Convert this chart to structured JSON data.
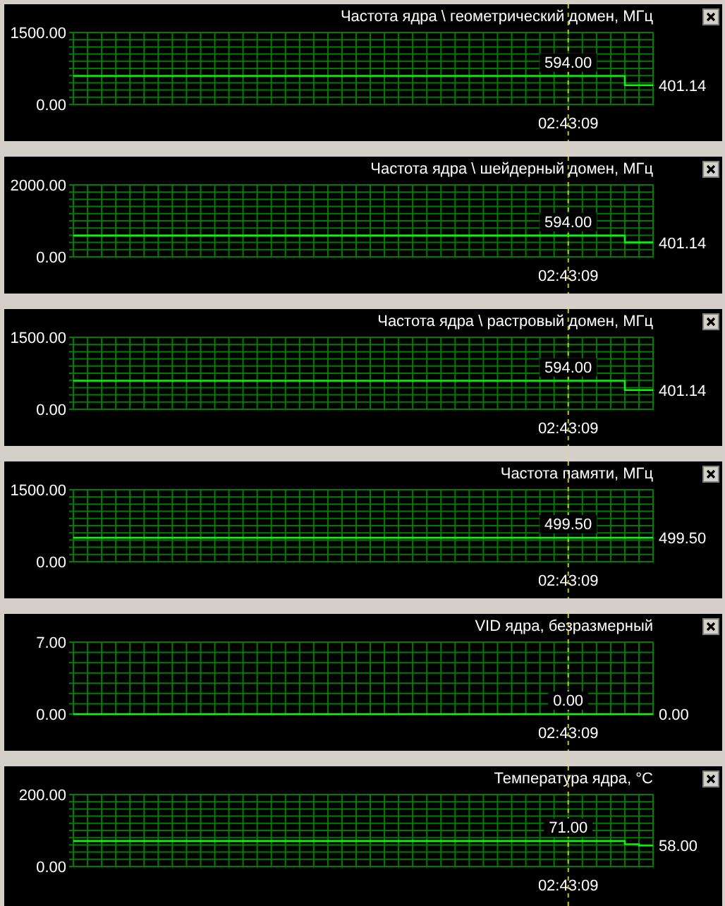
{
  "chart_data": [
    {
      "type": "step",
      "title": "Частота ядра \\ геометрический домен, МГц",
      "categories": [
        null,
        null,
        null,
        null,
        null,
        null,
        null,
        null,
        null,
        null,
        null,
        null,
        null,
        null,
        null,
        null,
        null,
        null,
        null,
        null,
        null,
        null,
        null,
        null,
        null,
        null,
        null,
        null,
        null,
        null,
        null,
        null,
        null,
        null,
        null,
        null,
        null,
        null,
        null,
        null,
        null,
        null
      ],
      "color": "#00ff00",
      "values": [
        594,
        594,
        594,
        594,
        594,
        594,
        594,
        594,
        594,
        594,
        594,
        594,
        594,
        594,
        594,
        594,
        594,
        594,
        594,
        594,
        594,
        594,
        594,
        594,
        594,
        594,
        594,
        594,
        594,
        594,
        594,
        594,
        594,
        594,
        594,
        594,
        594,
        594,
        594,
        401.14,
        401.14,
        401.14
      ],
      "value_labels": [
        null,
        null,
        null,
        null,
        null,
        null,
        null,
        null,
        null,
        null,
        null,
        null,
        null,
        null,
        null,
        null,
        null,
        null,
        null,
        null,
        null,
        null,
        null,
        null,
        null,
        null,
        null,
        null,
        null,
        null,
        null,
        null,
        null,
        null,
        null,
        "594.00",
        null,
        null,
        null,
        null,
        null,
        "401.14"
      ],
      "ylim": [
        0,
        1500
      ],
      "yticks": [
        {
          "value": 0,
          "label": "0.00"
        },
        {
          "value": 150,
          "label": null
        },
        {
          "value": 300,
          "label": null
        },
        {
          "value": 450,
          "label": null
        },
        {
          "value": 600,
          "label": null
        },
        {
          "value": 750,
          "label": null
        },
        {
          "value": 900,
          "label": null
        },
        {
          "value": 1050,
          "label": null
        },
        {
          "value": 1200,
          "label": null
        },
        {
          "value": 1350,
          "label": null
        },
        {
          "value": 1500,
          "label": "1500.00"
        }
      ],
      "grid": true,
      "annotations": [
        "02:43:09"
      ]
    },
    {
      "type": "step",
      "title": "Частота ядра \\ шейдерный домен, МГц",
      "categories": [
        null,
        null,
        null,
        null,
        null,
        null,
        null,
        null,
        null,
        null,
        null,
        null,
        null,
        null,
        null,
        null,
        null,
        null,
        null,
        null,
        null,
        null,
        null,
        null,
        null,
        null,
        null,
        null,
        null,
        null,
        null,
        null,
        null,
        null,
        null,
        null,
        null,
        null,
        null,
        null,
        null,
        null
      ],
      "color": "#00ff00",
      "values": [
        594,
        594,
        594,
        594,
        594,
        594,
        594,
        594,
        594,
        594,
        594,
        594,
        594,
        594,
        594,
        594,
        594,
        594,
        594,
        594,
        594,
        594,
        594,
        594,
        594,
        594,
        594,
        594,
        594,
        594,
        594,
        594,
        594,
        594,
        594,
        594,
        594,
        594,
        594,
        401.14,
        401.14,
        401.14
      ],
      "value_labels": [
        null,
        null,
        null,
        null,
        null,
        null,
        null,
        null,
        null,
        null,
        null,
        null,
        null,
        null,
        null,
        null,
        null,
        null,
        null,
        null,
        null,
        null,
        null,
        null,
        null,
        null,
        null,
        null,
        null,
        null,
        null,
        null,
        null,
        null,
        null,
        "594.00",
        null,
        null,
        null,
        null,
        null,
        "401.14"
      ],
      "ylim": [
        0,
        2000
      ],
      "yticks": [
        {
          "value": 0,
          "label": "0.00"
        },
        {
          "value": 200,
          "label": null
        },
        {
          "value": 400,
          "label": null
        },
        {
          "value": 600,
          "label": null
        },
        {
          "value": 800,
          "label": null
        },
        {
          "value": 1000,
          "label": null
        },
        {
          "value": 1200,
          "label": null
        },
        {
          "value": 1400,
          "label": null
        },
        {
          "value": 1600,
          "label": null
        },
        {
          "value": 1800,
          "label": null
        },
        {
          "value": 2000,
          "label": "2000.00"
        }
      ],
      "grid": true,
      "annotations": [
        "02:43:09"
      ]
    },
    {
      "type": "step",
      "title": "Частота ядра \\ растровый домен, МГц",
      "categories": [
        null,
        null,
        null,
        null,
        null,
        null,
        null,
        null,
        null,
        null,
        null,
        null,
        null,
        null,
        null,
        null,
        null,
        null,
        null,
        null,
        null,
        null,
        null,
        null,
        null,
        null,
        null,
        null,
        null,
        null,
        null,
        null,
        null,
        null,
        null,
        null,
        null,
        null,
        null,
        null,
        null,
        null
      ],
      "color": "#00ff00",
      "values": [
        594,
        594,
        594,
        594,
        594,
        594,
        594,
        594,
        594,
        594,
        594,
        594,
        594,
        594,
        594,
        594,
        594,
        594,
        594,
        594,
        594,
        594,
        594,
        594,
        594,
        594,
        594,
        594,
        594,
        594,
        594,
        594,
        594,
        594,
        594,
        594,
        594,
        594,
        594,
        401.14,
        401.14,
        401.14
      ],
      "value_labels": [
        null,
        null,
        null,
        null,
        null,
        null,
        null,
        null,
        null,
        null,
        null,
        null,
        null,
        null,
        null,
        null,
        null,
        null,
        null,
        null,
        null,
        null,
        null,
        null,
        null,
        null,
        null,
        null,
        null,
        null,
        null,
        null,
        null,
        null,
        null,
        "594.00",
        null,
        null,
        null,
        null,
        null,
        "401.14"
      ],
      "ylim": [
        0,
        1500
      ],
      "yticks": [
        {
          "value": 0,
          "label": "0.00"
        },
        {
          "value": 150,
          "label": null
        },
        {
          "value": 300,
          "label": null
        },
        {
          "value": 450,
          "label": null
        },
        {
          "value": 600,
          "label": null
        },
        {
          "value": 750,
          "label": null
        },
        {
          "value": 900,
          "label": null
        },
        {
          "value": 1050,
          "label": null
        },
        {
          "value": 1200,
          "label": null
        },
        {
          "value": 1350,
          "label": null
        },
        {
          "value": 1500,
          "label": "1500.00"
        }
      ],
      "grid": true,
      "annotations": [
        "02:43:09"
      ]
    },
    {
      "type": "step",
      "title": "Частота памяти, МГц",
      "categories": [
        null,
        null,
        null,
        null,
        null,
        null,
        null,
        null,
        null,
        null,
        null,
        null,
        null,
        null,
        null,
        null,
        null,
        null,
        null,
        null,
        null,
        null,
        null,
        null,
        null,
        null,
        null,
        null,
        null,
        null,
        null,
        null,
        null,
        null,
        null,
        null,
        null,
        null,
        null,
        null,
        null,
        null
      ],
      "color": "#00ff00",
      "values": [
        499.5,
        499.5,
        499.5,
        499.5,
        499.5,
        499.5,
        499.5,
        499.5,
        499.5,
        499.5,
        499.5,
        499.5,
        499.5,
        499.5,
        499.5,
        499.5,
        499.5,
        499.5,
        499.5,
        499.5,
        499.5,
        499.5,
        499.5,
        499.5,
        499.5,
        499.5,
        499.5,
        499.5,
        499.5,
        499.5,
        499.5,
        499.5,
        499.5,
        499.5,
        499.5,
        499.5,
        499.5,
        499.5,
        499.5,
        499.5,
        499.5,
        499.5
      ],
      "value_labels": [
        null,
        null,
        null,
        null,
        null,
        null,
        null,
        null,
        null,
        null,
        null,
        null,
        null,
        null,
        null,
        null,
        null,
        null,
        null,
        null,
        null,
        null,
        null,
        null,
        null,
        null,
        null,
        null,
        null,
        null,
        null,
        null,
        null,
        null,
        null,
        "499.50",
        null,
        null,
        null,
        null,
        null,
        "499.50"
      ],
      "ylim": [
        0,
        1500
      ],
      "yticks": [
        {
          "value": 0,
          "label": "0.00"
        },
        {
          "value": 150,
          "label": null
        },
        {
          "value": 300,
          "label": null
        },
        {
          "value": 450,
          "label": null
        },
        {
          "value": 600,
          "label": null
        },
        {
          "value": 750,
          "label": null
        },
        {
          "value": 900,
          "label": null
        },
        {
          "value": 1050,
          "label": null
        },
        {
          "value": 1200,
          "label": null
        },
        {
          "value": 1350,
          "label": null
        },
        {
          "value": 1500,
          "label": "1500.00"
        }
      ],
      "grid": true,
      "annotations": [
        "02:43:09"
      ]
    },
    {
      "type": "step",
      "title": "VID ядра, безразмерный",
      "categories": [
        null,
        null,
        null,
        null,
        null,
        null,
        null,
        null,
        null,
        null,
        null,
        null,
        null,
        null,
        null,
        null,
        null,
        null,
        null,
        null,
        null,
        null,
        null,
        null,
        null,
        null,
        null,
        null,
        null,
        null,
        null,
        null,
        null,
        null,
        null,
        null,
        null,
        null,
        null,
        null,
        null,
        null
      ],
      "color": "#00ff00",
      "values": [
        0,
        0,
        0,
        0,
        0,
        0,
        0,
        0,
        0,
        0,
        0,
        0,
        0,
        0,
        0,
        0,
        0,
        0,
        0,
        0,
        0,
        0,
        0,
        0,
        0,
        0,
        0,
        0,
        0,
        0,
        0,
        0,
        0,
        0,
        0,
        0,
        0,
        0,
        0,
        0,
        0,
        0
      ],
      "value_labels": [
        null,
        null,
        null,
        null,
        null,
        null,
        null,
        null,
        null,
        null,
        null,
        null,
        null,
        null,
        null,
        null,
        null,
        null,
        null,
        null,
        null,
        null,
        null,
        null,
        null,
        null,
        null,
        null,
        null,
        null,
        null,
        null,
        null,
        null,
        null,
        "0.00",
        null,
        null,
        null,
        null,
        null,
        "0.00"
      ],
      "ylim": [
        0,
        7
      ],
      "yticks": [
        {
          "value": 0,
          "label": "0.00"
        },
        {
          "value": 1,
          "label": null
        },
        {
          "value": 2,
          "label": null
        },
        {
          "value": 3,
          "label": null
        },
        {
          "value": 4,
          "label": null
        },
        {
          "value": 5,
          "label": null
        },
        {
          "value": 6,
          "label": null
        },
        {
          "value": 7,
          "label": "7.00"
        }
      ],
      "grid": true,
      "annotations": [
        "02:43:09"
      ]
    },
    {
      "type": "step",
      "title": "Температура ядра, °C",
      "categories": [
        null,
        null,
        null,
        null,
        null,
        null,
        null,
        null,
        null,
        null,
        null,
        null,
        null,
        null,
        null,
        null,
        null,
        null,
        null,
        null,
        null,
        null,
        null,
        null,
        null,
        null,
        null,
        null,
        null,
        null,
        null,
        null,
        null,
        null,
        null,
        null,
        null,
        null,
        null,
        null,
        null,
        null
      ],
      "color": "#00ff00",
      "values": [
        71,
        71,
        71,
        71,
        71,
        71,
        71,
        71,
        71,
        71,
        71,
        71,
        71,
        71,
        71,
        71,
        71,
        71,
        71,
        71,
        71,
        71,
        71,
        71,
        71,
        71,
        71,
        71,
        71,
        71,
        71,
        71,
        71,
        71,
        71,
        71,
        71,
        71,
        71,
        62,
        58,
        58
      ],
      "value_labels": [
        null,
        null,
        null,
        null,
        null,
        null,
        null,
        null,
        null,
        null,
        null,
        null,
        null,
        null,
        null,
        null,
        null,
        null,
        null,
        null,
        null,
        null,
        null,
        null,
        null,
        null,
        null,
        null,
        null,
        null,
        null,
        null,
        null,
        null,
        null,
        "71.00",
        null,
        null,
        null,
        null,
        null,
        "58.00"
      ],
      "ylim": [
        0,
        200
      ],
      "yticks": [
        {
          "value": 0,
          "label": "0.00"
        },
        {
          "value": 20,
          "label": null
        },
        {
          "value": 40,
          "label": null
        },
        {
          "value": 60,
          "label": null
        },
        {
          "value": 80,
          "label": null
        },
        {
          "value": 100,
          "label": null
        },
        {
          "value": 120,
          "label": null
        },
        {
          "value": 140,
          "label": null
        },
        {
          "value": 160,
          "label": null
        },
        {
          "value": 180,
          "label": null
        },
        {
          "value": 200,
          "label": "200.00"
        }
      ],
      "grid": true,
      "annotations": [
        "02:43:09"
      ]
    }
  ]
}
